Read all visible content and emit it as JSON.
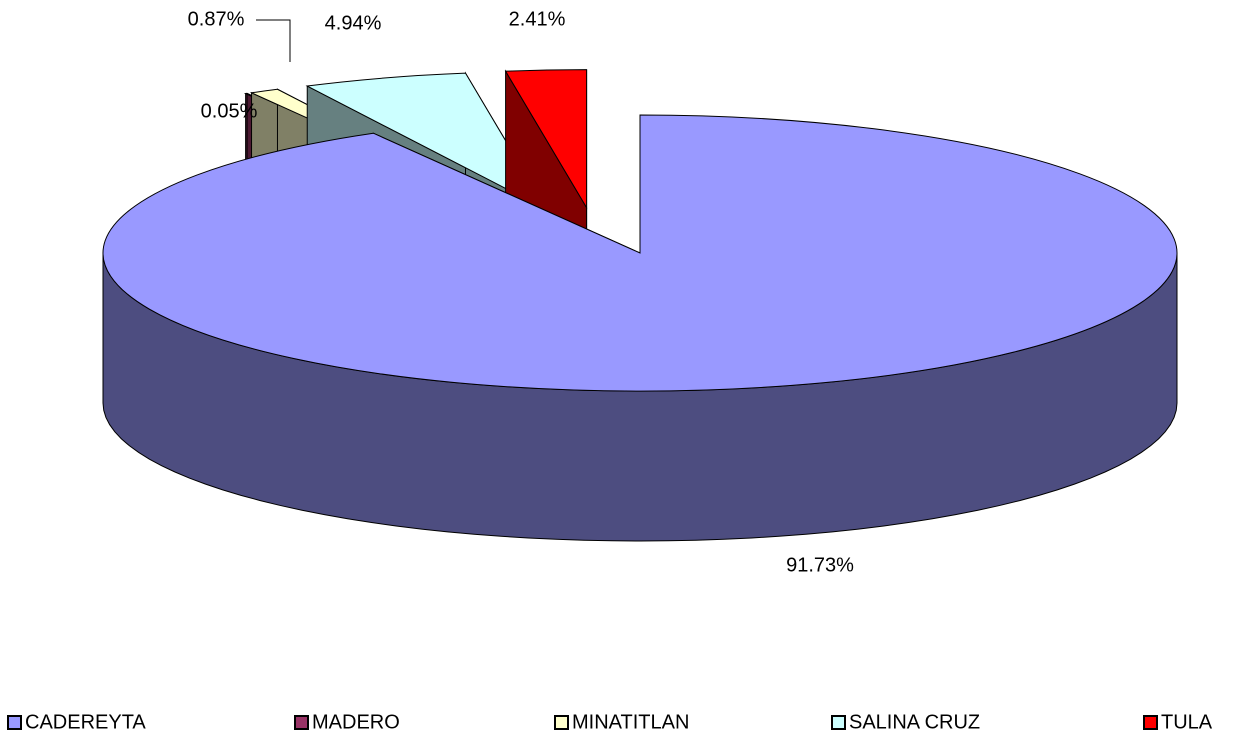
{
  "chart_data": {
    "type": "pie3d",
    "categories": [
      "CADEREYTA",
      "MADERO",
      "MINATITLAN",
      "SALINA CRUZ",
      "TULA"
    ],
    "values": [
      91.73,
      0.05,
      0.87,
      4.94,
      2.41
    ],
    "value_labels": [
      "91.73%",
      "0.05%",
      "0.87%",
      "4.94%",
      "2.41%"
    ],
    "colors": [
      "#9999ff",
      "#993366",
      "#ffffcc",
      "#ccffff",
      "#ff0000"
    ],
    "legend": "bottom"
  }
}
